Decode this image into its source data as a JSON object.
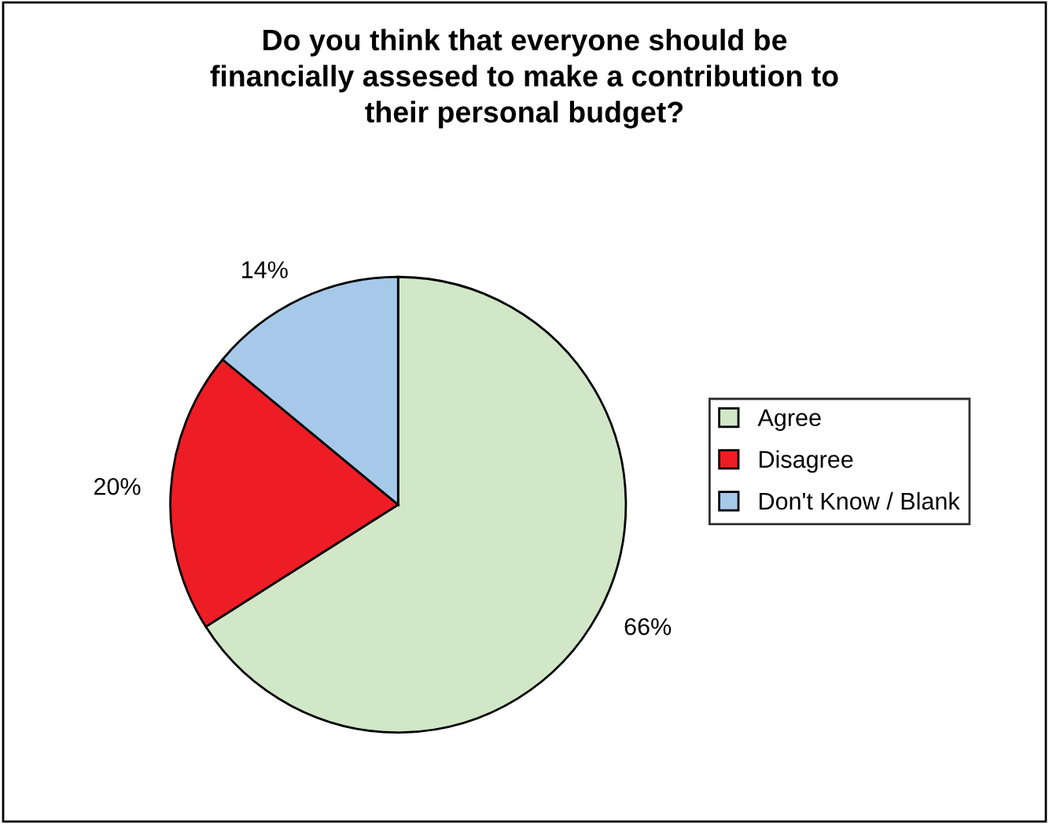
{
  "chart_data": {
    "type": "pie",
    "title": "Do you think that everyone should be\nfinancially assesed to make a contribution to\ntheir personal budget?",
    "categories": [
      "Agree",
      "Disagree",
      "Don't Know / Blank"
    ],
    "values": [
      66,
      20,
      14
    ],
    "colors": [
      "#d1e7c8",
      "#ee1c25",
      "#a6c9ea"
    ],
    "value_labels": [
      "66%",
      "20%",
      "14%"
    ],
    "legend": "right"
  }
}
